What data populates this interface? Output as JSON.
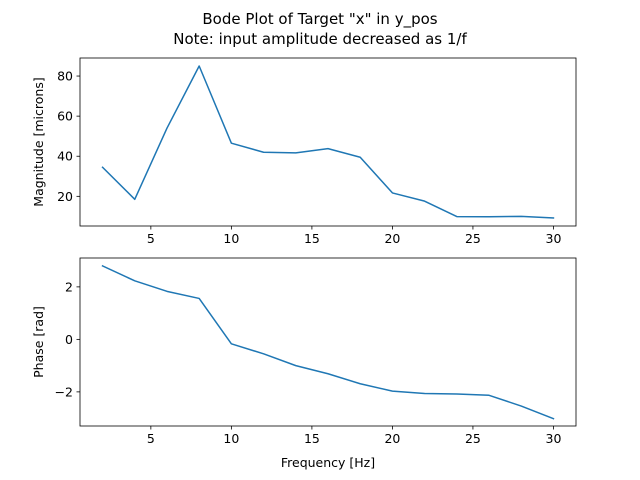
{
  "chart_data": [
    {
      "type": "line",
      "title": "Bode Plot of Target \"x\" in y_pos",
      "subtitle": "Note: input amplitude decreased as 1/f",
      "xlabel": "",
      "ylabel": "Magnitude [microns]",
      "xlim": [
        0.6,
        31.4
      ],
      "ylim": [
        5.2,
        89.0
      ],
      "xticks": [
        5,
        10,
        15,
        20,
        25,
        30
      ],
      "yticks": [
        20,
        40,
        60,
        80
      ],
      "grid": false,
      "series": [
        {
          "color": "#1f77b4",
          "x": [
            2,
            4,
            6,
            8,
            10,
            12,
            14,
            16,
            18,
            20,
            22,
            24,
            26,
            28,
            30
          ],
          "y": [
            34.5,
            18.5,
            54.0,
            85.0,
            46.5,
            42.0,
            41.7,
            43.8,
            39.5,
            21.7,
            17.6,
            9.9,
            9.8,
            10.0,
            9.2
          ]
        }
      ]
    },
    {
      "type": "line",
      "title": "",
      "xlabel": "Frequency [Hz]",
      "ylabel": "Phase [rad]",
      "xlim": [
        0.6,
        31.4
      ],
      "ylim": [
        -3.3,
        3.1
      ],
      "xticks": [
        5,
        10,
        15,
        20,
        25,
        30
      ],
      "yticks": [
        -2,
        0,
        2
      ],
      "grid": false,
      "series": [
        {
          "color": "#1f77b4",
          "x": [
            2,
            4,
            6,
            8,
            10,
            12,
            14,
            16,
            18,
            20,
            22,
            24,
            26,
            28,
            30
          ],
          "y": [
            2.8,
            2.23,
            1.83,
            1.56,
            -0.17,
            -0.55,
            -1.0,
            -1.31,
            -1.69,
            -1.97,
            -2.06,
            -2.08,
            -2.13,
            -2.54,
            -3.02
          ]
        }
      ]
    }
  ]
}
